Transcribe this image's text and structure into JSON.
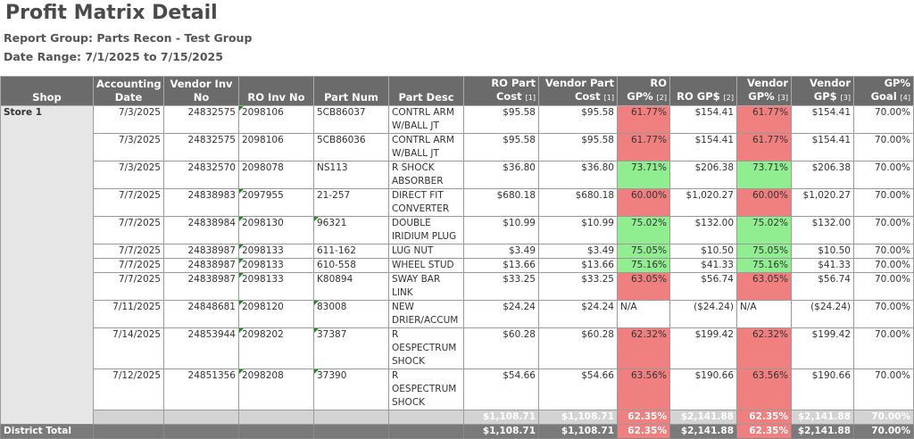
{
  "report": {
    "title": "Profit Matrix Detail",
    "report_group": "Report Group: Parts Recon - Test Group",
    "date_range": "Date Range: 7/1/2025 to 7/15/2025"
  },
  "columns": [
    {
      "label": "Shop",
      "note": ""
    },
    {
      "label": "Accounting Date",
      "note": ""
    },
    {
      "label": "Vendor Inv No",
      "note": ""
    },
    {
      "label": "RO Inv No",
      "note": ""
    },
    {
      "label": "Part Num",
      "note": ""
    },
    {
      "label": "Part Desc",
      "note": ""
    },
    {
      "label": "RO Part Cost",
      "note": "[1]"
    },
    {
      "label": "Vendor Part Cost",
      "note": "[1]"
    },
    {
      "label": "RO GP%",
      "note": "[2]"
    },
    {
      "label": "RO GP$",
      "note": "[2]"
    },
    {
      "label": "Vendor GP%",
      "note": "[3]"
    },
    {
      "label": "Vendor GP$",
      "note": "[3]"
    },
    {
      "label": "GP% Goal",
      "note": "[4]"
    }
  ],
  "shop_name": "Store 1",
  "rows": [
    {
      "date": "7/3/2025",
      "vendor_inv": "24832575",
      "ro_inv": "2098106",
      "part_num": "5CB86037",
      "part_desc": "CONTRL ARM W/BALL JT",
      "ro_cost": "$95.58",
      "vendor_cost": "$95.58",
      "ro_gp_pct": "61.77%",
      "ro_gp_amt": "$154.41",
      "vendor_gp_pct": "61.77%",
      "vendor_gp_amt": "$154.41",
      "goal": "70.00%",
      "status": "red",
      "flag_ro": true,
      "flag_part": false
    },
    {
      "date": "7/3/2025",
      "vendor_inv": "24832575",
      "ro_inv": "2098106",
      "part_num": "5CB86036",
      "part_desc": "CONTRL ARM W/BALL JT",
      "ro_cost": "$95.58",
      "vendor_cost": "$95.58",
      "ro_gp_pct": "61.77%",
      "ro_gp_amt": "$154.41",
      "vendor_gp_pct": "61.77%",
      "vendor_gp_amt": "$154.41",
      "goal": "70.00%",
      "status": "red",
      "flag_ro": false,
      "flag_part": false
    },
    {
      "date": "7/3/2025",
      "vendor_inv": "24832570",
      "ro_inv": "2098078",
      "part_num": "NS113",
      "part_desc": "R SHOCK ABSORBER",
      "ro_cost": "$36.80",
      "vendor_cost": "$36.80",
      "ro_gp_pct": "73.71%",
      "ro_gp_amt": "$206.38",
      "vendor_gp_pct": "73.71%",
      "vendor_gp_amt": "$206.38",
      "goal": "70.00%",
      "status": "green",
      "flag_ro": false,
      "flag_part": false
    },
    {
      "date": "7/7/2025",
      "vendor_inv": "24838983",
      "ro_inv": "2097955",
      "part_num": "21-257",
      "part_desc": "DIRECT FIT CONVERTER",
      "ro_cost": "$680.18",
      "vendor_cost": "$680.18",
      "ro_gp_pct": "60.00%",
      "ro_gp_amt": "$1,020.27",
      "vendor_gp_pct": "60.00%",
      "vendor_gp_amt": "$1,020.27",
      "goal": "70.00%",
      "status": "red",
      "flag_ro": true,
      "flag_part": false
    },
    {
      "date": "7/7/2025",
      "vendor_inv": "24838984",
      "ro_inv": "2098130",
      "part_num": "96321",
      "part_desc": "DOUBLE IRIDIUM PLUG",
      "ro_cost": "$10.99",
      "vendor_cost": "$10.99",
      "ro_gp_pct": "75.02%",
      "ro_gp_amt": "$132.00",
      "vendor_gp_pct": "75.02%",
      "vendor_gp_amt": "$132.00",
      "goal": "70.00%",
      "status": "green",
      "flag_ro": true,
      "flag_part": true
    },
    {
      "date": "7/7/2025",
      "vendor_inv": "24838987",
      "ro_inv": "2098133",
      "part_num": "611-162",
      "part_desc": "LUG NUT",
      "ro_cost": "$3.49",
      "vendor_cost": "$3.49",
      "ro_gp_pct": "75.05%",
      "ro_gp_amt": "$10.50",
      "vendor_gp_pct": "75.05%",
      "vendor_gp_amt": "$10.50",
      "goal": "70.00%",
      "status": "green",
      "flag_ro": true,
      "flag_part": false
    },
    {
      "date": "7/7/2025",
      "vendor_inv": "24838987",
      "ro_inv": "2098133",
      "part_num": "610-558",
      "part_desc": "WHEEL STUD",
      "ro_cost": "$13.66",
      "vendor_cost": "$13.66",
      "ro_gp_pct": "75.16%",
      "ro_gp_amt": "$41.33",
      "vendor_gp_pct": "75.16%",
      "vendor_gp_amt": "$41.33",
      "goal": "70.00%",
      "status": "green",
      "flag_ro": true,
      "flag_part": false
    },
    {
      "date": "7/7/2025",
      "vendor_inv": "24838987",
      "ro_inv": "2098133",
      "part_num": "K80894",
      "part_desc": "SWAY BAR LINK",
      "ro_cost": "$33.25",
      "vendor_cost": "$33.25",
      "ro_gp_pct": "63.05%",
      "ro_gp_amt": "$56.74",
      "vendor_gp_pct": "63.05%",
      "vendor_gp_amt": "$56.74",
      "goal": "70.00%",
      "status": "red",
      "flag_ro": true,
      "flag_part": false
    },
    {
      "date": "7/11/2025",
      "vendor_inv": "24848681",
      "ro_inv": "2098120",
      "part_num": "83008",
      "part_desc": "NEW DRIER/ACCUM",
      "ro_cost": "$24.24",
      "vendor_cost": "$24.24",
      "ro_gp_pct": "N/A",
      "ro_gp_amt": "($24.24)",
      "vendor_gp_pct": "N/A",
      "vendor_gp_amt": "($24.24)",
      "goal": "70.00%",
      "status": "none",
      "flag_ro": true,
      "flag_part": true
    },
    {
      "date": "7/14/2025",
      "vendor_inv": "24853944",
      "ro_inv": "2098202",
      "part_num": "37387",
      "part_desc": "R OESPECTRUM SHOCK",
      "ro_cost": "$60.28",
      "vendor_cost": "$60.28",
      "ro_gp_pct": "62.32%",
      "ro_gp_amt": "$199.42",
      "vendor_gp_pct": "62.32%",
      "vendor_gp_amt": "$199.42",
      "goal": "70.00%",
      "status": "red",
      "flag_ro": true,
      "flag_part": true
    },
    {
      "date": "7/12/2025",
      "vendor_inv": "24851356",
      "ro_inv": "2098208",
      "part_num": "37390",
      "part_desc": "R OESPECTRUM SHOCK",
      "ro_cost": "$54.66",
      "vendor_cost": "$54.66",
      "ro_gp_pct": "63.56%",
      "ro_gp_amt": "$190.66",
      "vendor_gp_pct": "63.56%",
      "vendor_gp_amt": "$190.66",
      "goal": "70.00%",
      "status": "red",
      "flag_ro": true,
      "flag_part": true
    }
  ],
  "subtotal": {
    "ro_cost": "$1,108.71",
    "vendor_cost": "$1,108.71",
    "ro_gp_pct": "62.35%",
    "ro_gp_amt": "$2,141.88",
    "vendor_gp_pct": "62.35%",
    "vendor_gp_amt": "$2,141.88",
    "goal": "70.00%"
  },
  "district_total": {
    "label": "District Total",
    "ro_cost": "$1,108.71",
    "vendor_cost": "$1,108.71",
    "ro_gp_pct": "62.35%",
    "ro_gp_amt": "$2,141.88",
    "vendor_gp_pct": "62.35%",
    "vendor_gp_amt": "$2,141.88",
    "goal": "70.00%"
  },
  "colors": {
    "header_bg": "#6b6b6b",
    "below_goal": "#f08080",
    "above_goal": "#90ee90",
    "shop_bg": "#e6e6e6",
    "flag": "#1a8f1a"
  }
}
